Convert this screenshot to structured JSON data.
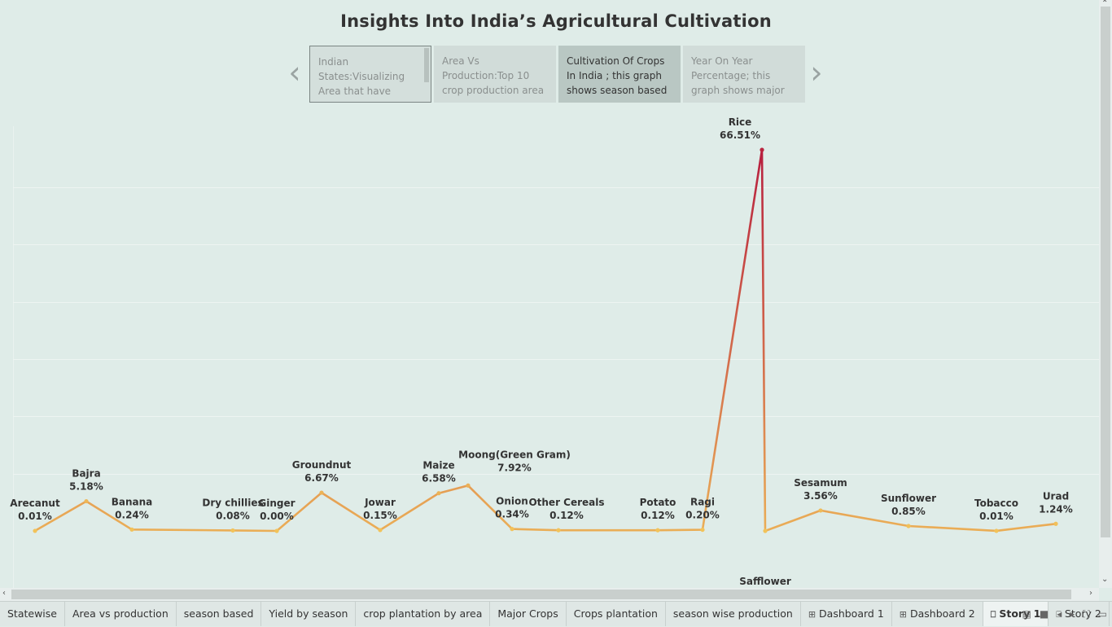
{
  "title": "Insights Into India’s Agricultural Cultivation",
  "story_points": [
    {
      "text": "Indian States:Visualizing Area that have"
    },
    {
      "text": "Area Vs Production:Top 10 crop production area"
    },
    {
      "text": "Cultivation  Of Crops In India ; this graph shows season based"
    },
    {
      "text": "Year  On Year Percentage; this graph shows major crop"
    }
  ],
  "nav": {
    "prev": "‹",
    "next": "›"
  },
  "tabs": [
    {
      "label": "Statewise"
    },
    {
      "label": "Area vs production"
    },
    {
      "label": "season based"
    },
    {
      "label": "Yield by season"
    },
    {
      "label": "crop plantation by area"
    },
    {
      "label": "Major Crops"
    },
    {
      "label": "Crops plantation"
    },
    {
      "label": "season wise production"
    },
    {
      "label": "Dashboard 1",
      "icon": "dashboard-icon"
    },
    {
      "label": "Dashboard 2",
      "icon": "dashboard-icon"
    },
    {
      "label": "Story 1",
      "icon": "story-icon",
      "active": true
    },
    {
      "label": "Story 2",
      "icon": "story-icon"
    }
  ],
  "colors": {
    "low": "#f2c35a",
    "high": "#b71d3e"
  },
  "chart_data": {
    "type": "line",
    "categories": [
      "Arecanut",
      "Bajra",
      "Banana",
      "Dry chillies",
      "Ginger",
      "Groundnut",
      "Jowar",
      "Maize",
      "Moong(Green Gram)",
      "Onion",
      "Other Cereals",
      "Potato",
      "Ragi",
      "Rice",
      "Safflower",
      "Sesamum",
      "Sunflower",
      "Tobacco",
      "Urad"
    ],
    "values": [
      0.01,
      5.18,
      0.24,
      0.08,
      0.0,
      6.67,
      0.15,
      6.58,
      7.92,
      0.34,
      0.12,
      0.12,
      0.2,
      66.51,
      0.0,
      3.56,
      0.85,
      0.01,
      1.24
    ],
    "labels": [
      "0.01%",
      "5.18%",
      "0.24%",
      "0.08%",
      "0.00%",
      "6.67%",
      "0.15%",
      "6.58%",
      "7.92%",
      "0.34%",
      "0.12%",
      "0.12%",
      "0.20%",
      "66.51%",
      "",
      "3.56%",
      "0.85%",
      "0.01%",
      "1.24%"
    ],
    "ylim": [
      0,
      70
    ]
  }
}
